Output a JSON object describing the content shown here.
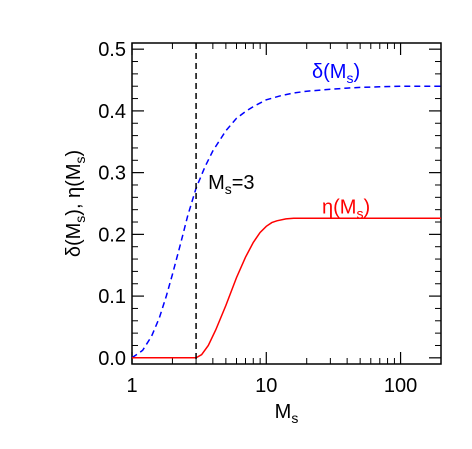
{
  "chart_data": {
    "type": "line",
    "title": "",
    "xscale": "log",
    "xlim": [
      1,
      200
    ],
    "ylim": [
      -0.01,
      0.51
    ],
    "xticks": [
      {
        "value": 1,
        "label": "1"
      },
      {
        "value": 10,
        "label": "10"
      },
      {
        "value": 100,
        "label": "100"
      }
    ],
    "yticks": [
      {
        "value": 0.0,
        "label": "0.0"
      },
      {
        "value": 0.1,
        "label": "0.1"
      },
      {
        "value": 0.2,
        "label": "0.2"
      },
      {
        "value": 0.3,
        "label": "0.3"
      },
      {
        "value": 0.4,
        "label": "0.4"
      },
      {
        "value": 0.5,
        "label": "0.5"
      }
    ],
    "xlabel": {
      "main": "M",
      "sub": "s"
    },
    "ylabel": {
      "d": "δ",
      "sep": ", ",
      "e": "η",
      "m": "M",
      "sub": "s"
    },
    "grid": false,
    "series": [
      {
        "name": "δ(Ms)",
        "label_parts": {
          "sym": "δ",
          "m": "M",
          "sub": "s"
        },
        "color": "#0000ff",
        "dash": "dashed",
        "x": [
          1,
          1.2,
          1.4,
          1.6,
          1.8,
          2.0,
          2.3,
          2.6,
          3.0,
          3.5,
          4,
          5,
          6,
          7,
          8,
          10,
          13,
          16,
          20,
          30,
          40,
          50,
          70,
          100,
          140,
          200
        ],
        "y": [
          0.0,
          0.012,
          0.035,
          0.065,
          0.1,
          0.135,
          0.185,
          0.23,
          0.275,
          0.31,
          0.335,
          0.368,
          0.388,
          0.399,
          0.407,
          0.418,
          0.425,
          0.429,
          0.432,
          0.435,
          0.437,
          0.438,
          0.439,
          0.44,
          0.44,
          0.44
        ]
      },
      {
        "name": "η(Ms)",
        "label_parts": {
          "sym": "η",
          "m": "M",
          "sub": "s"
        },
        "color": "#ff0000",
        "dash": "solid",
        "x": [
          1,
          2.0,
          2.7,
          3.0,
          3.3,
          3.7,
          4.2,
          5,
          6,
          7,
          8,
          9,
          10,
          11,
          12,
          14,
          16,
          18,
          20,
          50,
          100,
          200
        ],
        "y": [
          0.0,
          0.0,
          0.0,
          0.0,
          0.005,
          0.02,
          0.045,
          0.085,
          0.13,
          0.163,
          0.187,
          0.203,
          0.213,
          0.219,
          0.222,
          0.225,
          0.226,
          0.226,
          0.226,
          0.226,
          0.226,
          0.226
        ]
      }
    ],
    "vline": {
      "x": 3,
      "color": "#000000",
      "dash": "dashed",
      "label_main": "M",
      "label_sub": "s",
      "label_rest": "=3"
    }
  }
}
